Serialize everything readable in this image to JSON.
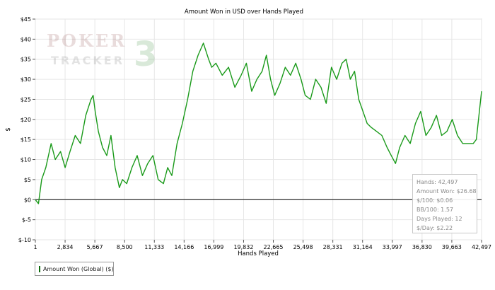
{
  "chart_data": {
    "type": "line",
    "title": "Amount Won in USD over Hands Played",
    "xlabel": "Hands Played",
    "ylabel": "$",
    "xlim": [
      1,
      42497
    ],
    "ylim": [
      -10,
      45
    ],
    "x_ticks": [
      1,
      2834,
      5667,
      8500,
      11333,
      14166,
      16999,
      19832,
      22665,
      25498,
      28331,
      31164,
      33997,
      36830,
      39663,
      42497
    ],
    "x_tick_labels": [
      "1",
      "2,834",
      "5,667",
      "8,500",
      "11,333",
      "14,166",
      "16,999",
      "19,832",
      "22,665",
      "25,498",
      "28,331",
      "31,164",
      "33,997",
      "36,830",
      "39,663",
      "42,497"
    ],
    "y_ticks": [
      -10,
      -5,
      0,
      5,
      10,
      15,
      20,
      25,
      30,
      35,
      40,
      45
    ],
    "y_tick_labels": [
      "$-10",
      "$-5",
      "$0",
      "$5",
      "$10",
      "$15",
      "$20",
      "$25",
      "$30",
      "$35",
      "$40",
      "$45"
    ],
    "grid": true,
    "legend_position": "bottom-left",
    "series": [
      {
        "name": "Amount Won (Global) ($)",
        "color": "#1a9a1a",
        "x": [
          1,
          300,
          600,
          1000,
          1500,
          1900,
          2400,
          2834,
          3300,
          3800,
          4300,
          4800,
          5300,
          5500,
          5700,
          6000,
          6400,
          6800,
          7200,
          7600,
          8000,
          8300,
          8700,
          9200,
          9700,
          10200,
          10700,
          11200,
          11700,
          12200,
          12600,
          13000,
          13500,
          14000,
          14500,
          15000,
          15500,
          16000,
          16500,
          16800,
          17200,
          17800,
          18400,
          19000,
          19600,
          20100,
          20600,
          21100,
          21600,
          22000,
          22400,
          22800,
          23300,
          23800,
          24300,
          24800,
          25300,
          25700,
          26200,
          26700,
          27200,
          27700,
          28200,
          28700,
          29200,
          29600,
          30000,
          30400,
          30800,
          31200,
          31600,
          32000,
          32500,
          33000,
          33500,
          33900,
          34300,
          34700,
          35200,
          35700,
          36200,
          36700,
          37200,
          37700,
          38200,
          38700,
          39200,
          39700,
          40200,
          40700,
          41200,
          41700,
          42000,
          42250,
          42497
        ],
        "y": [
          0,
          -1,
          5,
          8,
          14,
          10,
          12,
          8,
          12,
          16,
          14,
          21,
          25,
          26,
          22,
          17,
          13,
          11,
          16,
          8,
          3,
          5,
          4,
          8,
          11,
          6,
          9,
          11,
          5,
          4,
          8,
          6,
          14,
          19,
          25,
          32,
          36,
          39,
          35,
          33,
          34,
          31,
          33,
          28,
          31,
          34,
          27,
          30,
          32,
          36,
          30,
          26,
          29,
          33,
          31,
          34,
          30,
          26,
          25,
          30,
          28,
          24,
          33,
          30,
          34,
          35,
          30,
          32,
          25,
          22,
          19,
          18,
          17,
          16,
          13,
          11,
          9,
          13,
          16,
          14,
          19,
          22,
          16,
          18,
          21,
          16,
          17,
          20,
          16,
          14,
          14,
          14,
          15,
          21,
          27
        ]
      }
    ],
    "annotation": {
      "lines": [
        "Hands: 42,497",
        "Amount Won: $26.68",
        "$/100: $0.06",
        "BB/100: 1.57",
        "Days Played: 12",
        "$/Day: $2.22"
      ]
    }
  },
  "watermark": {
    "text_top": "POKER",
    "text_bottom": "TRACKER",
    "number": "3"
  }
}
